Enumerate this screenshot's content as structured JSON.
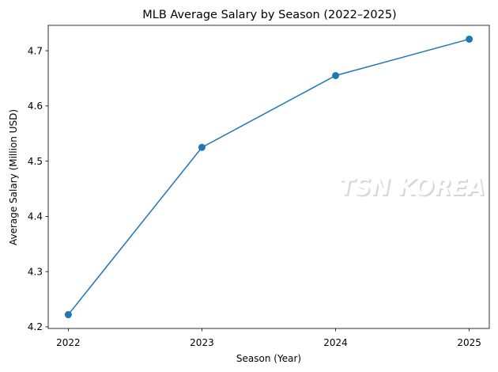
{
  "chart_data": {
    "type": "line",
    "title": "MLB Average Salary by Season (2022–2025)",
    "xlabel": "Season (Year)",
    "ylabel": "Average Salary (Million USD)",
    "x": [
      2022,
      2023,
      2024,
      2025
    ],
    "series": [
      {
        "values": [
          4.222,
          4.525,
          4.655,
          4.721
        ]
      }
    ],
    "yticks": [
      4.2,
      4.3,
      4.4,
      4.5,
      4.6,
      4.7
    ],
    "ylim": [
      4.197,
      4.746
    ],
    "xlim": [
      2021.85,
      2025.15
    ],
    "grid": false,
    "marker": "circle",
    "line_color": "#1f77b4",
    "watermark": "TSN KOREA"
  }
}
